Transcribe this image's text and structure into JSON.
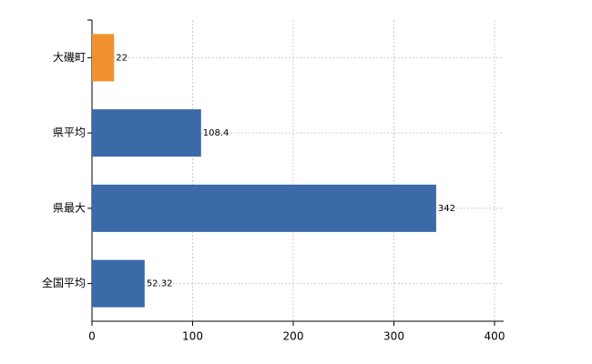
{
  "chart_data": {
    "type": "bar",
    "orientation": "horizontal",
    "categories": [
      "大磯町",
      "県平均",
      "県最大",
      "全国平均"
    ],
    "values": [
      22,
      108.4,
      342,
      52.32
    ],
    "colors": [
      "#f0902f",
      "#3a6aa8",
      "#3a6aa8",
      "#3a6aa8"
    ],
    "xlim": [
      0,
      400
    ],
    "xticks": [
      0,
      100,
      200,
      300,
      400
    ],
    "grid": true,
    "data_labels": true
  }
}
